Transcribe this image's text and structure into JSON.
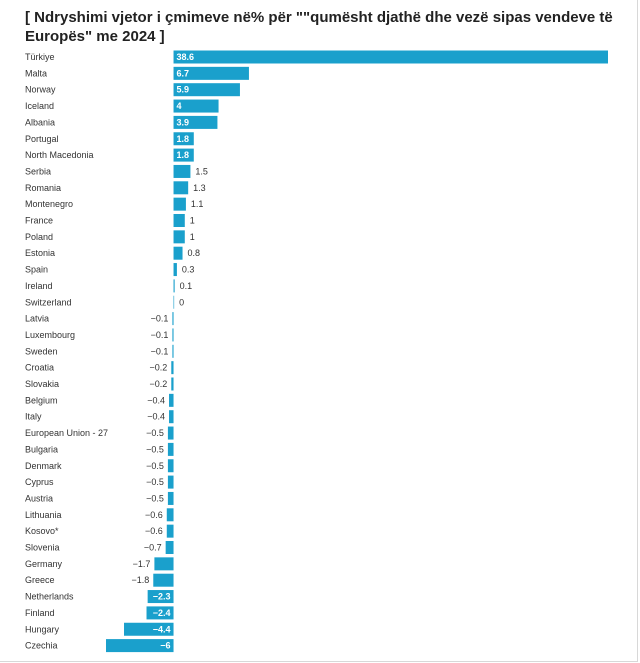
{
  "chart_data": {
    "type": "bar",
    "orientation": "horizontal",
    "title": "[ Ndryshimi vjetor i çmimeve në% për \"\"qumësht  djathë dhe vezë sipas vendeve të Europës\" me 2024 ]",
    "bar_color": "#1aa0cc",
    "categories": [
      "Türkiye",
      "Malta",
      "Norway",
      "Iceland",
      "Albania",
      "Portugal",
      "North Macedonia",
      "Serbia",
      "Romania",
      "Montenegro",
      "France",
      "Poland",
      "Estonia",
      "Spain",
      "Ireland",
      "Switzerland",
      "Latvia",
      "Luxembourg",
      "Sweden",
      "Croatia",
      "Slovakia",
      "Belgium",
      "Italy",
      "European Union - 27",
      "Bulgaria",
      "Denmark",
      "Cyprus",
      "Austria",
      "Lithuania",
      "Kosovo*",
      "Slovenia",
      "Germany",
      "Greece",
      "Netherlands",
      "Finland",
      "Hungary",
      "Czechia"
    ],
    "values": [
      38.6,
      6.7,
      5.9,
      4,
      3.9,
      1.8,
      1.8,
      1.5,
      1.3,
      1.1,
      1,
      1,
      0.8,
      0.3,
      0.1,
      0,
      -0.1,
      -0.1,
      -0.1,
      -0.2,
      -0.2,
      -0.4,
      -0.4,
      -0.5,
      -0.5,
      -0.5,
      -0.5,
      -0.5,
      -0.6,
      -0.6,
      -0.7,
      -1.7,
      -1.8,
      -2.3,
      -2.4,
      -4.4,
      -6
    ],
    "value_labels": [
      "38.6",
      "6.7",
      "5.9",
      "4",
      "3.9",
      "1.8",
      "1.8",
      "1.5",
      "1.3",
      "1.1",
      "1",
      "1",
      "0.8",
      "0.3",
      "0.1",
      "0",
      "−0.1",
      "−0.1",
      "−0.1",
      "−0.2",
      "−0.2",
      "−0.4",
      "−0.4",
      "−0.5",
      "−0.5",
      "−0.5",
      "−0.5",
      "−0.5",
      "−0.6",
      "−0.6",
      "−0.7",
      "−1.7",
      "−1.8",
      "−2.3",
      "−2.4",
      "−4.4",
      "−6"
    ],
    "labels_inside": [
      true,
      true,
      true,
      true,
      true,
      true,
      true,
      false,
      false,
      false,
      false,
      false,
      false,
      false,
      false,
      false,
      false,
      false,
      false,
      false,
      false,
      false,
      false,
      false,
      false,
      false,
      false,
      false,
      false,
      false,
      false,
      false,
      false,
      true,
      true,
      true,
      true
    ],
    "xlim": [
      -6,
      38.6
    ]
  }
}
